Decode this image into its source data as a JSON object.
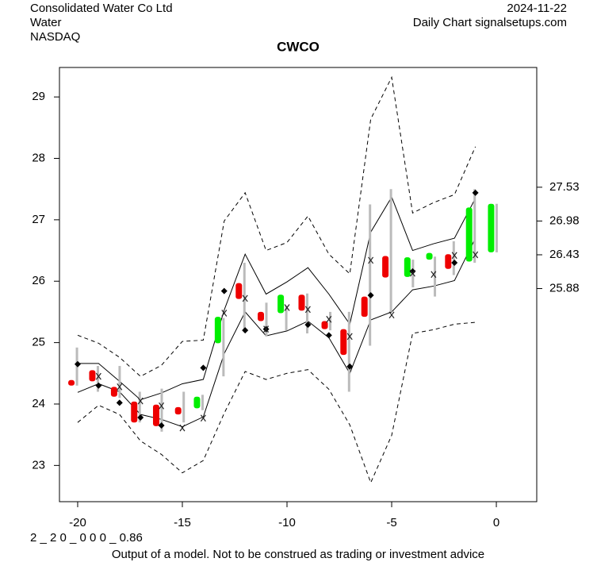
{
  "chart_data": {
    "type": "candlestick",
    "title": "CWCO",
    "header_left": [
      "Consolidated Water Co Ltd",
      "Water",
      "NASDAQ"
    ],
    "header_right": [
      "2024-11-22",
      "Daily Chart signalsetups.com"
    ],
    "model_code": "2 _ 2 0 _ 0 0 0 _ 0.86",
    "footer": "Output of a model. Not to be construed as trading or investment advice",
    "xlim": [
      -20.87,
      1.93
    ],
    "ylim": [
      22.41,
      29.48
    ],
    "y2lim": [
      22.41,
      29.48
    ],
    "xticks": [
      -20,
      -15,
      -10,
      -5,
      0
    ],
    "yticks": [
      23,
      24,
      25,
      26,
      27,
      28,
      29
    ],
    "y2ticks": [
      25.88,
      26.43,
      26.98,
      27.53
    ],
    "up_color": "#00ee00",
    "down_color": "#ee0000",
    "wick_color": "#bbbbbb",
    "candles": {
      "x": [
        -20.3,
        -19.3,
        -18.26,
        -17.3,
        -16.25,
        -15.2,
        -14.3,
        -13.3,
        -12.3,
        -11.25,
        -10.3,
        -9.3,
        -8.2,
        -7.3,
        -6.3,
        -5.3,
        -4.25,
        -3.2,
        -2.3,
        -1.3,
        -0.25
      ],
      "open": [
        24.39,
        24.55,
        24.28,
        24.04,
        23.99,
        23.95,
        23.93,
        24.99,
        25.97,
        25.5,
        25.48,
        25.78,
        25.35,
        25.22,
        25.75,
        26.41,
        26.07,
        26.35,
        26.44,
        26.32,
        26.47
      ],
      "close": [
        24.3,
        24.37,
        24.12,
        23.7,
        23.64,
        23.83,
        24.12,
        25.42,
        25.71,
        25.35,
        25.78,
        25.52,
        25.22,
        24.8,
        25.42,
        26.06,
        26.39,
        26.46,
        26.2,
        27.2,
        27.26
      ],
      "high": [
        24.92,
        24.62,
        24.62,
        24.2,
        24.25,
        24.2,
        24.15,
        25.4,
        26.3,
        25.65,
        25.6,
        25.8,
        25.5,
        25.5,
        27.25,
        27.5,
        26.35,
        26.4,
        26.65,
        27.5,
        27.26
      ],
      "low": [
        24.3,
        24.2,
        24.1,
        23.7,
        23.55,
        23.7,
        23.9,
        24.45,
        25.2,
        25.1,
        25.2,
        25.15,
        25.2,
        24.2,
        24.95,
        25.5,
        25.9,
        25.75,
        26.1,
        26.3,
        26.47
      ]
    },
    "x": [
      -20,
      -19,
      -18,
      -17,
      -16,
      -15,
      -14,
      -13,
      -12,
      -11,
      -10,
      -9,
      -8,
      -7,
      -6,
      -5,
      -4,
      -3,
      -2,
      -1
    ],
    "bands": [
      {
        "style": "solid",
        "values": [
          24.66,
          24.66,
          24.37,
          24.07,
          24.18,
          24.33,
          24.4,
          25.53,
          26.44,
          25.79,
          25.99,
          26.22,
          25.79,
          25.3,
          26.8,
          27.37,
          26.5,
          26.61,
          26.7,
          27.35
        ]
      },
      {
        "style": "solid",
        "values": [
          24.19,
          24.33,
          24.2,
          23.83,
          23.75,
          23.63,
          23.79,
          24.82,
          25.5,
          25.11,
          25.19,
          25.35,
          25.08,
          24.5,
          25.37,
          25.5,
          25.86,
          25.92,
          26.01,
          26.7
        ]
      },
      {
        "style": "dashed",
        "values": [
          25.12,
          24.99,
          24.76,
          24.45,
          24.63,
          25.02,
          25.04,
          26.98,
          27.44,
          26.5,
          26.63,
          27.06,
          26.44,
          26.12,
          28.64,
          29.32,
          27.11,
          27.28,
          27.41,
          28.19
        ]
      },
      {
        "style": "dashed",
        "values": [
          23.7,
          23.98,
          23.83,
          23.4,
          23.18,
          22.88,
          23.08,
          23.85,
          24.53,
          24.4,
          24.5,
          24.56,
          24.24,
          23.66,
          22.72,
          23.49,
          25.15,
          25.21,
          25.3,
          25.33
        ]
      }
    ],
    "diamonds": [
      24.65,
      24.3,
      24.02,
      23.78,
      23.65,
      null,
      24.59,
      25.84,
      25.2,
      25.22,
      null,
      25.29,
      25.12,
      24.61,
      25.77,
      null,
      26.16,
      null,
      26.3,
      27.44
    ],
    "crosses": [
      null,
      24.45,
      24.28,
      24.05,
      23.97,
      23.61,
      23.77,
      25.48,
      25.72,
      25.22,
      25.57,
      25.54,
      25.38,
      25.1,
      26.34,
      25.45,
      26.13,
      26.11,
      26.42,
      26.43
    ]
  }
}
